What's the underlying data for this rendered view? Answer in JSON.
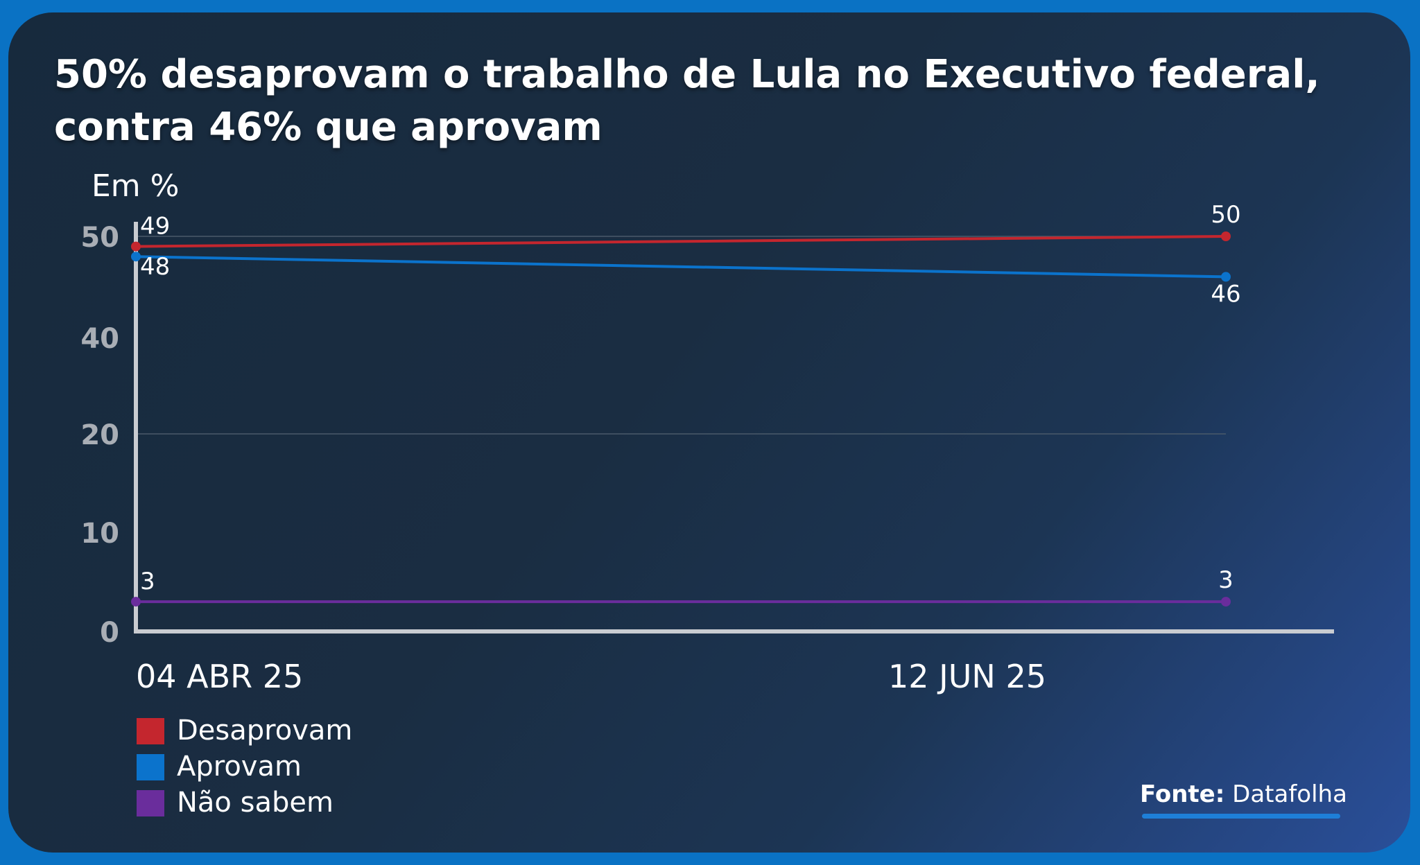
{
  "title_lines": [
    "50% desaprovam o trabalho de Lula no Executivo federal,",
    "contra 46% que aprovam"
  ],
  "source": {
    "label": "Fonte:",
    "value": "Datafolha"
  },
  "colors": {
    "desaprovam": "#c4262e",
    "aprovam": "#0b73cc",
    "nao_sabem": "#6a2d9c",
    "axis": "#c9ccd1",
    "grid": "#4a5a6a",
    "tick_label": "#a9aeb5"
  },
  "chart_data": {
    "type": "line",
    "title": "50% desaprovam o trabalho de Lula no Executivo federal, contra 46% que aprovam",
    "ylabel": "Em %",
    "xlabel": "",
    "x": [
      "04 ABR 25",
      "12 JUN 25"
    ],
    "x_tick_labels": [
      "04 ABR 25",
      "12 JUN 25"
    ],
    "y_tick_labels": [
      "0",
      "10",
      "20",
      "40",
      "50"
    ],
    "y_axis_note": "broken scale: ticks 0, 10, 20, 40, 50 evenly spaced",
    "grid": true,
    "legend_position": "bottom-left",
    "series": [
      {
        "name": "Desaprovam",
        "values": [
          49,
          50
        ],
        "labels": [
          "49",
          "50"
        ],
        "color": "#c4262e"
      },
      {
        "name": "Aprovam",
        "values": [
          48,
          46
        ],
        "labels": [
          "48",
          "46"
        ],
        "color": "#0b73cc"
      },
      {
        "name": "Não sabem",
        "values": [
          3,
          3
        ],
        "labels": [
          "3",
          "3"
        ],
        "color": "#6a2d9c"
      }
    ]
  }
}
